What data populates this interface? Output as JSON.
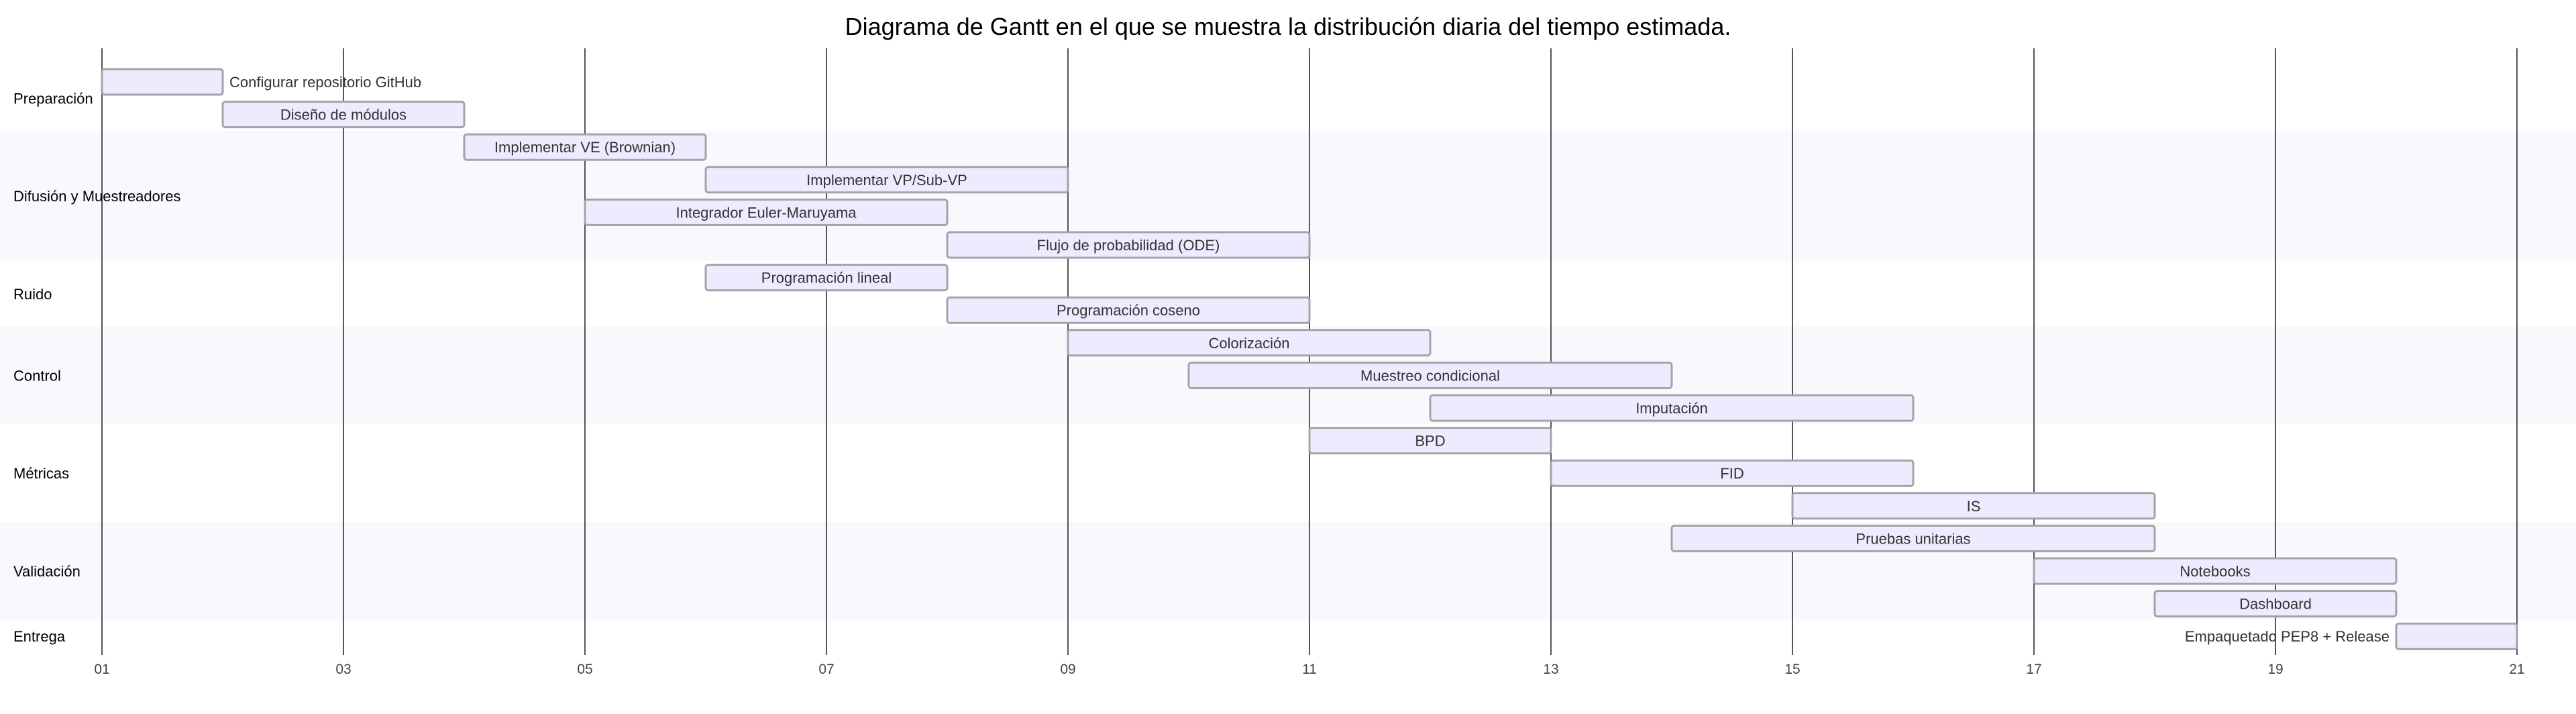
{
  "chart_data": {
    "type": "gantt",
    "title": "Diagrama de Gantt en el que se muestra la distribución diaria del tiempo estimada.",
    "x_range": [
      1,
      21
    ],
    "x_ticks": [
      "01",
      "03",
      "05",
      "07",
      "09",
      "11",
      "13",
      "15",
      "17",
      "19",
      "21"
    ],
    "grid": true,
    "colors": {
      "bar_fill": "#ececfe",
      "bar_stroke": "#a3a3a8",
      "grid": "#555555",
      "section_band_alt": "#f8f8fd"
    },
    "sections": [
      {
        "name": "Preparación",
        "tasks": [
          {
            "label": "Configurar repositorio GitHub",
            "start": 1,
            "end": 2,
            "label_position": "right"
          },
          {
            "label": "Diseño de módulos",
            "start": 2,
            "end": 4
          }
        ]
      },
      {
        "name": "Difusión y Muestreadores",
        "tasks": [
          {
            "label": "Implementar VE (Brownian)",
            "start": 4,
            "end": 6
          },
          {
            "label": "Implementar VP/Sub-VP",
            "start": 6,
            "end": 9
          },
          {
            "label": "Integrador Euler-Maruyama",
            "start": 5,
            "end": 8
          },
          {
            "label": "Flujo de probabilidad (ODE)",
            "start": 8,
            "end": 11
          }
        ]
      },
      {
        "name": "Ruido",
        "tasks": [
          {
            "label": "Programación lineal",
            "start": 6,
            "end": 8
          },
          {
            "label": "Programación coseno",
            "start": 8,
            "end": 11
          }
        ]
      },
      {
        "name": "Control",
        "tasks": [
          {
            "label": "Colorización",
            "start": 9,
            "end": 12
          },
          {
            "label": "Muestreo condicional",
            "start": 10,
            "end": 14
          },
          {
            "label": "Imputación",
            "start": 12,
            "end": 16
          }
        ]
      },
      {
        "name": "Métricas",
        "tasks": [
          {
            "label": "BPD",
            "start": 11,
            "end": 13
          },
          {
            "label": "FID",
            "start": 13,
            "end": 16
          },
          {
            "label": "IS",
            "start": 15,
            "end": 18
          }
        ]
      },
      {
        "name": "Validación",
        "tasks": [
          {
            "label": "Pruebas unitarias",
            "start": 14,
            "end": 18
          },
          {
            "label": "Notebooks",
            "start": 17,
            "end": 20
          },
          {
            "label": "Dashboard",
            "start": 18,
            "end": 20
          }
        ]
      },
      {
        "name": "Entrega",
        "tasks": [
          {
            "label": "Empaquetado PEP8 + Release",
            "start": 20,
            "end": 21,
            "label_position": "left"
          }
        ]
      }
    ]
  }
}
